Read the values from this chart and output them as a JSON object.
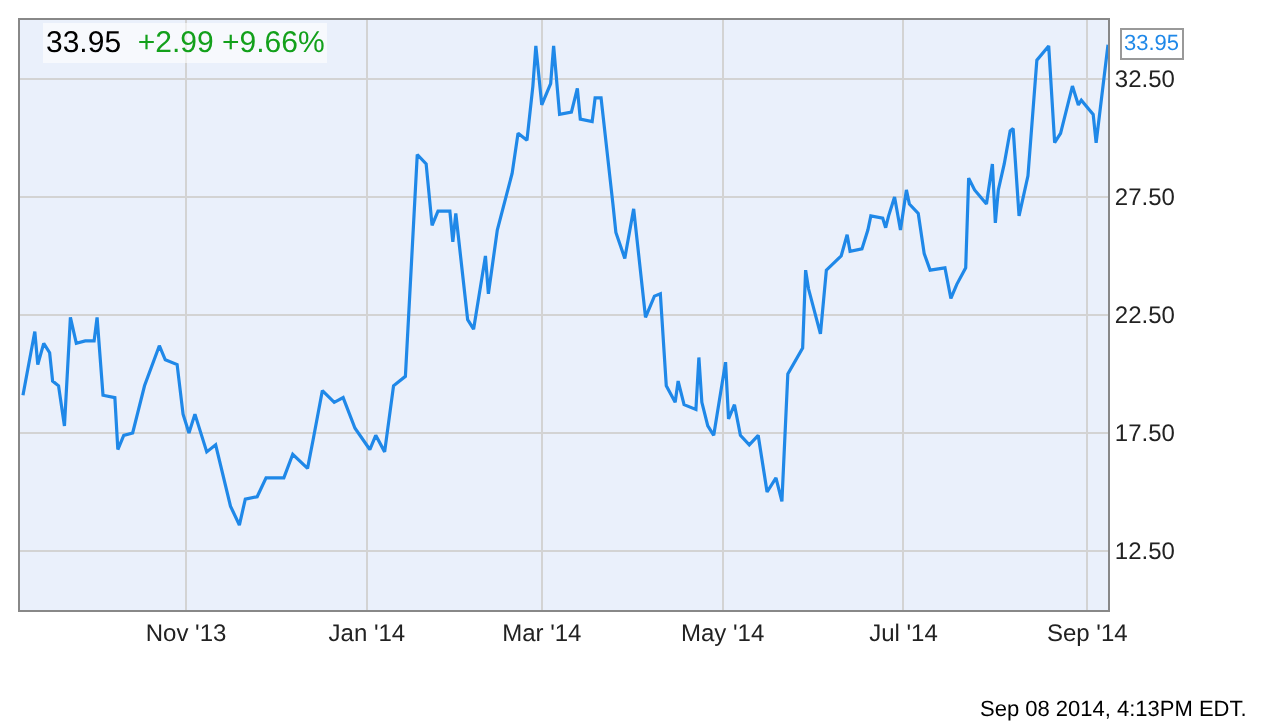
{
  "chart_data": {
    "type": "line",
    "title": "33.95",
    "subtitle": "+2.99 +9.66%",
    "x": [
      "2013-09-07",
      "2013-09-11",
      "2013-09-12",
      "2013-09-14",
      "2013-09-16",
      "2013-09-17",
      "2013-09-19",
      "2013-09-21",
      "2013-09-23",
      "2013-09-25",
      "2013-09-28",
      "2013-10-01",
      "2013-10-02",
      "2013-10-04",
      "2013-10-08",
      "2013-10-09",
      "2013-10-11",
      "2013-10-14",
      "2013-10-18",
      "2013-10-23",
      "2013-10-25",
      "2013-10-29",
      "2013-10-31",
      "2013-11-02",
      "2013-11-04",
      "2013-11-08",
      "2013-11-11",
      "2013-11-16",
      "2013-11-19",
      "2013-11-21",
      "2013-11-25",
      "2013-11-28",
      "2013-12-04",
      "2013-12-07",
      "2013-12-12",
      "2013-12-14",
      "2013-12-17",
      "2013-12-21",
      "2013-12-24",
      "2013-12-28",
      "2014-01-02",
      "2014-01-04",
      "2014-01-07",
      "2014-01-10",
      "2014-01-14",
      "2014-01-18",
      "2014-01-21",
      "2014-01-23",
      "2014-01-25",
      "2014-01-29",
      "2014-01-30",
      "2014-01-31",
      "2014-02-04",
      "2014-02-06",
      "2014-02-10",
      "2014-02-11",
      "2014-02-14",
      "2014-02-19",
      "2014-02-21",
      "2014-02-24",
      "2014-02-26",
      "2014-02-27",
      "2014-03-01",
      "2014-03-04",
      "2014-03-05",
      "2014-03-07",
      "2014-03-11",
      "2014-03-13",
      "2014-03-14",
      "2014-03-18",
      "2014-03-19",
      "2014-03-21",
      "2014-03-25",
      "2014-03-26",
      "2014-03-29",
      "2014-04-01",
      "2014-04-05",
      "2014-04-08",
      "2014-04-10",
      "2014-04-12",
      "2014-04-15",
      "2014-04-16",
      "2014-04-18",
      "2014-04-22",
      "2014-04-23",
      "2014-04-24",
      "2014-04-26",
      "2014-04-28",
      "2014-05-02",
      "2014-05-03",
      "2014-05-05",
      "2014-05-07",
      "2014-05-10",
      "2014-05-13",
      "2014-05-16",
      "2014-05-19",
      "2014-05-21",
      "2014-05-23",
      "2014-05-28",
      "2014-05-29",
      "2014-05-30",
      "2014-06-03",
      "2014-06-05",
      "2014-06-10",
      "2014-06-12",
      "2014-06-13",
      "2014-06-17",
      "2014-06-19",
      "2014-06-20",
      "2014-06-24",
      "2014-06-25",
      "2014-06-26",
      "2014-06-28",
      "2014-06-30",
      "2014-07-02",
      "2014-07-03",
      "2014-07-06",
      "2014-07-08",
      "2014-07-10",
      "2014-07-15",
      "2014-07-17",
      "2014-07-19",
      "2014-07-22",
      "2014-07-23",
      "2014-07-25",
      "2014-07-29",
      "2014-07-31",
      "2014-08-01",
      "2014-08-02",
      "2014-08-04",
      "2014-08-06",
      "2014-08-07",
      "2014-08-09",
      "2014-08-12",
      "2014-08-15",
      "2014-08-19",
      "2014-08-21",
      "2014-08-23",
      "2014-08-27",
      "2014-08-29",
      "2014-08-30",
      "2014-09-03",
      "2014-09-04",
      "2014-09-08"
    ],
    "series": [
      {
        "color": "#1f88e8",
        "values": [
          19.1,
          21.8,
          20.4,
          21.3,
          20.9,
          19.7,
          19.5,
          17.8,
          22.4,
          21.3,
          21.4,
          21.4,
          22.4,
          19.1,
          19.0,
          16.8,
          17.4,
          17.5,
          19.5,
          21.2,
          20.6,
          20.4,
          18.3,
          17.5,
          18.3,
          16.7,
          17.0,
          14.4,
          13.6,
          14.7,
          14.8,
          15.6,
          15.6,
          16.6,
          16.0,
          17.3,
          19.3,
          18.8,
          19.0,
          17.7,
          16.8,
          17.4,
          16.7,
          19.5,
          19.9,
          29.3,
          28.9,
          26.3,
          26.9,
          26.9,
          25.6,
          26.8,
          22.3,
          21.9,
          25.0,
          23.4,
          26.1,
          28.5,
          30.2,
          29.9,
          32.2,
          33.9,
          31.4,
          32.3,
          33.9,
          31.0,
          31.1,
          32.1,
          30.8,
          30.7,
          31.7,
          31.7,
          27.2,
          26.0,
          24.9,
          27.0,
          22.4,
          23.3,
          23.4,
          19.5,
          18.8,
          19.7,
          18.7,
          18.5,
          20.7,
          18.8,
          17.8,
          17.4,
          20.5,
          18.1,
          18.7,
          17.4,
          17.0,
          17.4,
          15.0,
          15.6,
          14.6,
          20.0,
          21.1,
          24.4,
          23.6,
          21.7,
          24.4,
          25.0,
          25.9,
          25.2,
          25.3,
          26.1,
          26.7,
          26.6,
          26.2,
          26.7,
          27.5,
          26.1,
          27.8,
          27.2,
          26.8,
          25.1,
          24.4,
          24.5,
          23.2,
          23.8,
          24.5,
          28.3,
          27.8,
          27.2,
          28.9,
          26.4,
          27.8,
          28.9,
          30.3,
          30.4,
          26.7,
          28.4,
          33.3,
          33.9,
          29.8,
          30.2,
          32.2,
          31.4,
          31.6,
          31.0,
          29.8,
          33.95
        ]
      }
    ],
    "xlim": [
      "2013-09-06",
      "2014-09-08"
    ],
    "xticks": [
      {
        "value": "2013-11-01",
        "label": "Nov '13"
      },
      {
        "value": "2014-01-01",
        "label": "Jan '14"
      },
      {
        "value": "2014-03-01",
        "label": "Mar '14"
      },
      {
        "value": "2014-05-01",
        "label": "May '14"
      },
      {
        "value": "2014-07-01",
        "label": "Jul '14"
      },
      {
        "value": "2014-09-01",
        "label": "Sep '14"
      }
    ],
    "ylim": [
      10,
      35
    ],
    "yticks": [
      {
        "value": 12.5,
        "label": "12.50"
      },
      {
        "value": 17.5,
        "label": "17.50"
      },
      {
        "value": 22.5,
        "label": "22.50"
      },
      {
        "value": 27.5,
        "label": "27.50"
      },
      {
        "value": 32.5,
        "label": "32.50"
      }
    ],
    "grid": true,
    "marker": "none",
    "line_style": "solid",
    "annotations": [
      {
        "text": "33.95",
        "x": "2014-09-08",
        "y": 33.95
      },
      "Sep 08 2014, 4:13PM EDT."
    ]
  }
}
